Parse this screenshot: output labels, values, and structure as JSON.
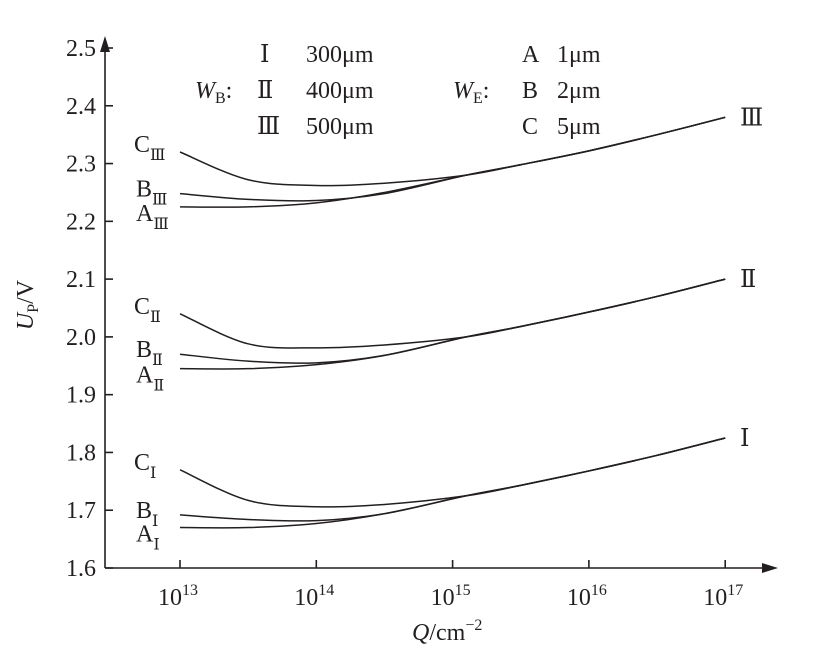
{
  "chart_data": {
    "type": "line",
    "xscale": "log",
    "xlabel": "Q/cm",
    "xlabel_italic": "Q",
    "xlabel_unit": "/cm",
    "xlabel_sup": "−2",
    "ylabel_main": "U",
    "ylabel_sub": "P",
    "ylabel_unit": "/V",
    "xlim_log10": [
      12.45,
      17.3
    ],
    "ylim": [
      1.6,
      2.5
    ],
    "xticks": [
      {
        "base": "10",
        "exp": "13",
        "v": 13
      },
      {
        "base": "10",
        "exp": "14",
        "v": 14
      },
      {
        "base": "10",
        "exp": "15",
        "v": 15
      },
      {
        "base": "10",
        "exp": "16",
        "v": 16
      },
      {
        "base": "10",
        "exp": "17",
        "v": 17
      }
    ],
    "yticks": [
      "1.6",
      "1.7",
      "1.8",
      "1.9",
      "2.0",
      "2.1",
      "2.2",
      "2.3",
      "2.4",
      "2.5"
    ],
    "x_log10": [
      13,
      13.5,
      14,
      14.5,
      15.1,
      15.5,
      16,
      16.5,
      17
    ],
    "series": [
      {
        "name": "C",
        "group": "Ⅲ",
        "values": [
          2.32,
          2.272,
          2.262,
          2.266,
          2.28,
          2.298,
          2.322,
          2.35,
          2.38
        ]
      },
      {
        "name": "B",
        "group": "Ⅲ",
        "values": [
          2.248,
          2.238,
          2.236,
          2.248,
          2.28,
          2.298,
          2.322,
          2.35,
          2.38
        ]
      },
      {
        "name": "A",
        "group": "Ⅲ",
        "values": [
          2.225,
          2.225,
          2.232,
          2.25,
          2.28,
          2.298,
          2.322,
          2.35,
          2.38
        ]
      },
      {
        "name": "C",
        "group": "Ⅱ",
        "values": [
          2.04,
          1.988,
          1.981,
          1.986,
          2.0,
          2.018,
          2.043,
          2.07,
          2.1
        ]
      },
      {
        "name": "B",
        "group": "Ⅱ",
        "values": [
          1.97,
          1.958,
          1.955,
          1.968,
          2.0,
          2.018,
          2.043,
          2.07,
          2.1
        ]
      },
      {
        "name": "A",
        "group": "Ⅱ",
        "values": [
          1.945,
          1.945,
          1.952,
          1.968,
          2.0,
          2.018,
          2.043,
          2.07,
          2.1
        ]
      },
      {
        "name": "C",
        "group": "Ⅰ",
        "values": [
          1.77,
          1.717,
          1.706,
          1.71,
          1.725,
          1.743,
          1.768,
          1.795,
          1.825
        ]
      },
      {
        "name": "B",
        "group": "Ⅰ",
        "values": [
          1.692,
          1.684,
          1.682,
          1.694,
          1.725,
          1.743,
          1.768,
          1.795,
          1.825
        ]
      },
      {
        "name": "A",
        "group": "Ⅰ",
        "values": [
          1.67,
          1.67,
          1.677,
          1.694,
          1.725,
          1.743,
          1.768,
          1.795,
          1.825
        ]
      }
    ],
    "curve_labels": [
      {
        "letter": "C",
        "sub": "Ⅲ"
      },
      {
        "letter": "B",
        "sub": "Ⅲ"
      },
      {
        "letter": "A",
        "sub": "Ⅲ"
      },
      {
        "letter": "C",
        "sub": "Ⅱ"
      },
      {
        "letter": "B",
        "sub": "Ⅱ"
      },
      {
        "letter": "A",
        "sub": "Ⅱ"
      },
      {
        "letter": "C",
        "sub": "Ⅰ"
      },
      {
        "letter": "B",
        "sub": "Ⅰ"
      },
      {
        "letter": "A",
        "sub": "Ⅰ"
      }
    ],
    "group_labels": [
      "Ⅲ",
      "Ⅱ",
      "Ⅰ"
    ],
    "legend": {
      "wb_label": "W",
      "wb_sub": "B",
      "wb_colon": ":",
      "wb_items": [
        {
          "k": "Ⅰ",
          "v": "300μm"
        },
        {
          "k": "Ⅱ",
          "v": "400μm"
        },
        {
          "k": "Ⅲ",
          "v": "500μm"
        }
      ],
      "we_label": "W",
      "we_sub": "E",
      "we_colon": ":",
      "we_items": [
        {
          "k": "A",
          "v": "1μm"
        },
        {
          "k": "B",
          "v": "2μm"
        },
        {
          "k": "C",
          "v": "5μm"
        }
      ],
      "placement": "top"
    }
  }
}
